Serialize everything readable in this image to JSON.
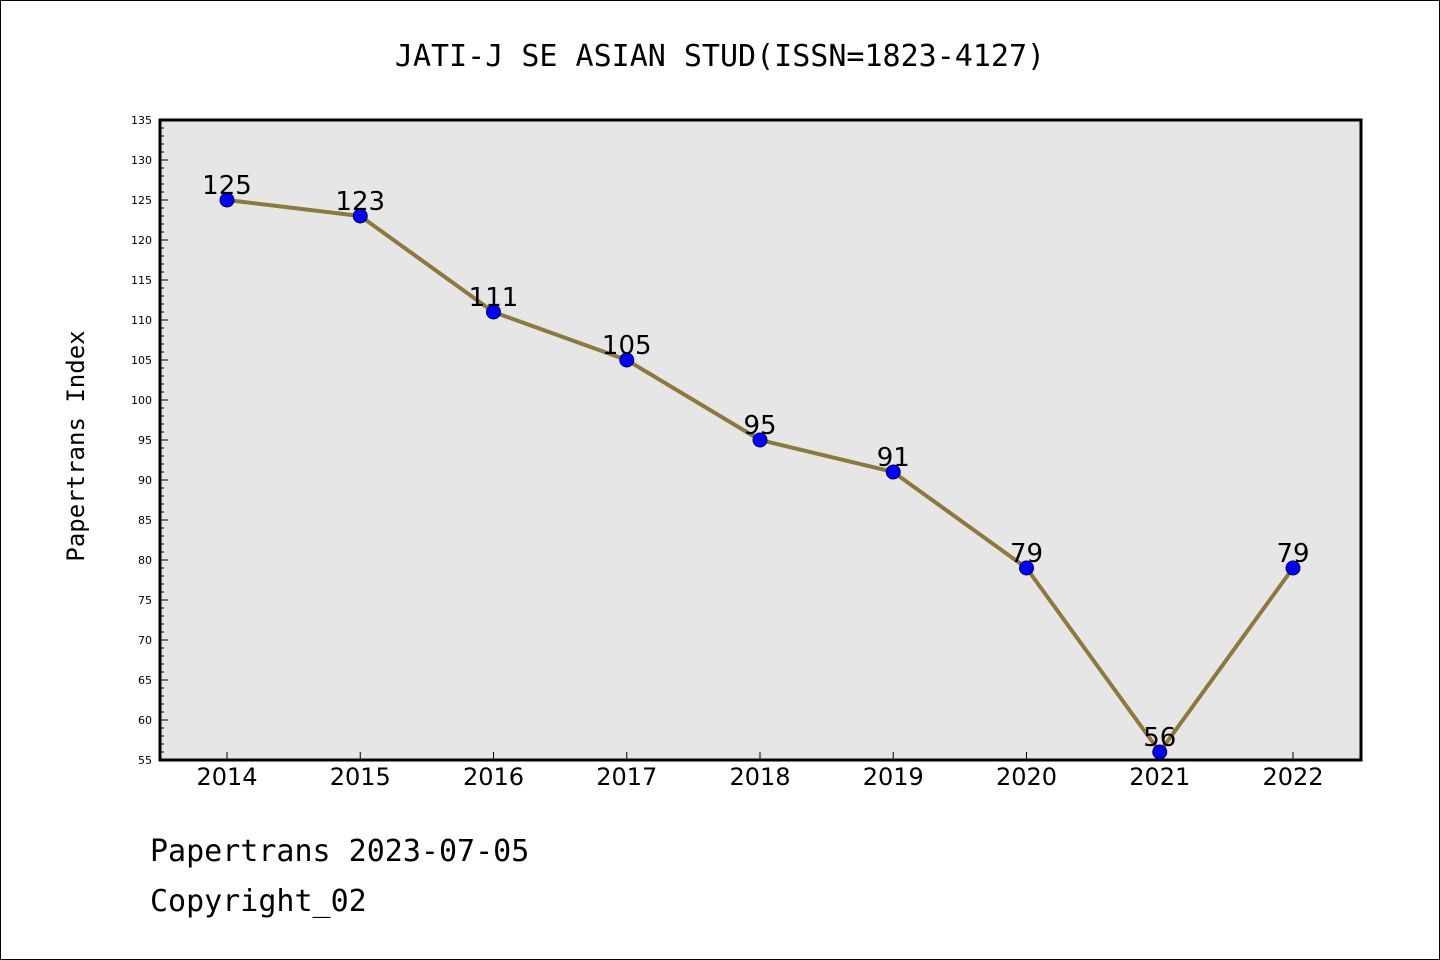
{
  "chart_data": {
    "type": "line",
    "title": "JATI-J SE ASIAN STUD(ISSN=1823-4127)",
    "xlabel": "",
    "ylabel": "Papertrans Index",
    "categories": [
      "2014",
      "2015",
      "2016",
      "2017",
      "2018",
      "2019",
      "2020",
      "2021",
      "2022"
    ],
    "series": [
      {
        "values": [
          125,
          123,
          111,
          105,
          95,
          91,
          79,
          56,
          79
        ]
      }
    ],
    "ylim": [
      55,
      135
    ],
    "yticks": [
      55,
      60,
      65,
      70,
      75,
      80,
      85,
      90,
      95,
      100,
      105,
      110,
      115,
      120,
      125,
      130,
      135
    ],
    "grid": false,
    "data_labels": true,
    "colors": {
      "line": "#8b7a3a",
      "marker": "#0000ff",
      "plot_background": "#e6e6e6"
    }
  },
  "footer": {
    "line1": "Papertrans 2023-07-05",
    "line2": "Copyright_02"
  }
}
